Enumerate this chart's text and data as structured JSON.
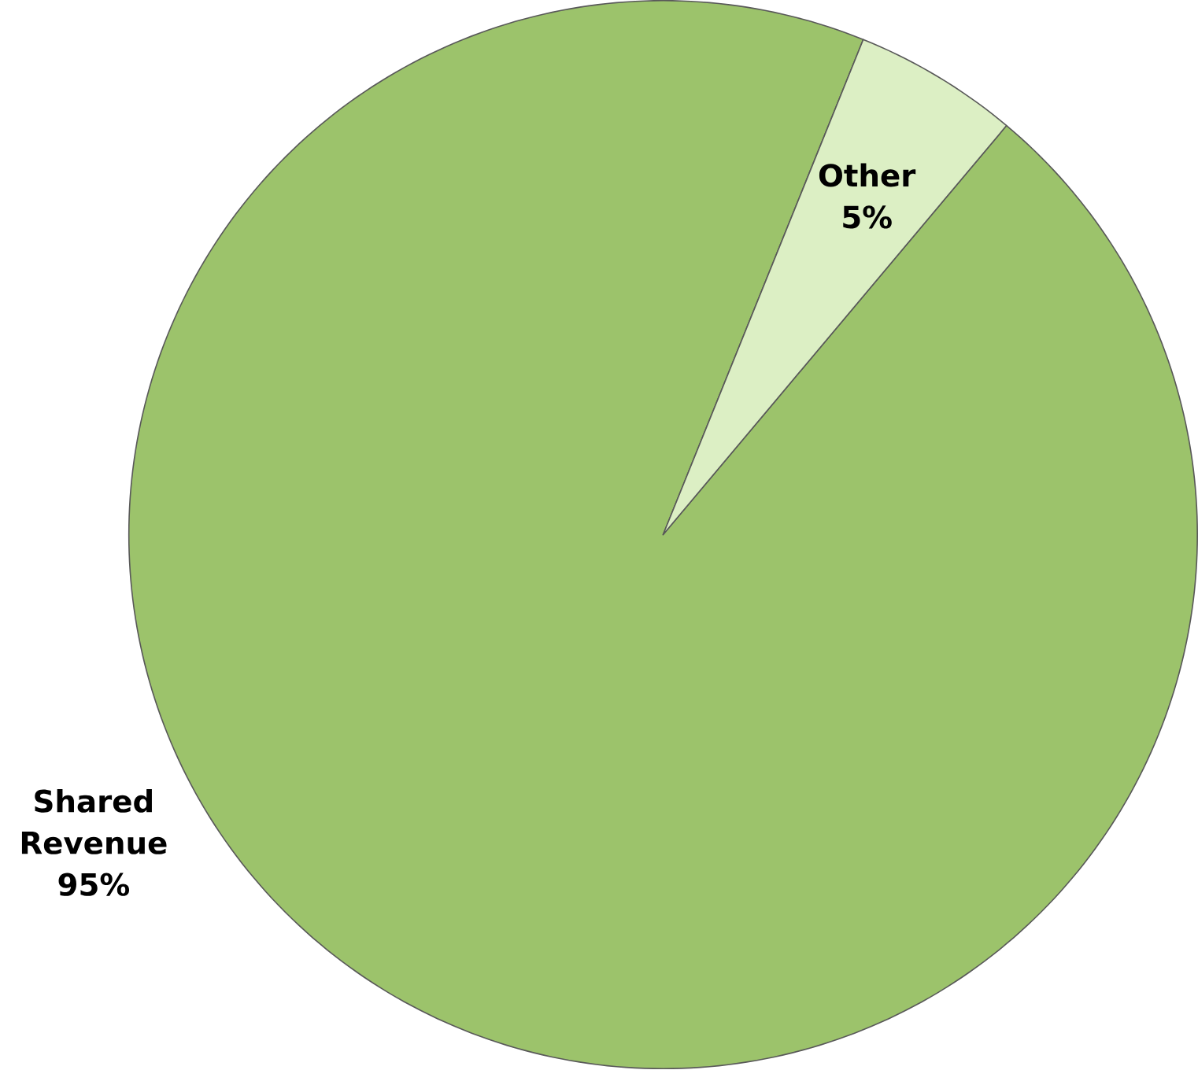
{
  "chart_data": {
    "type": "pie",
    "categories": [
      "Shared Revenue",
      "Other"
    ],
    "values": [
      95,
      5
    ],
    "colors": [
      "#9cc36b",
      "#dcefc4"
    ],
    "value_labels": [
      "95%",
      "5%"
    ]
  }
}
